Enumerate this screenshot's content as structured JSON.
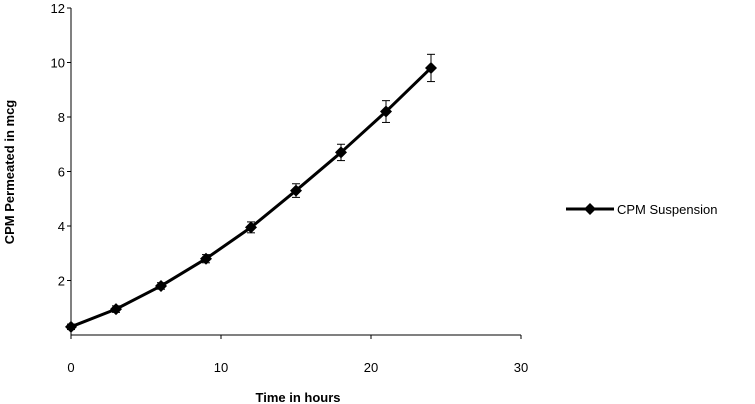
{
  "chart_data": {
    "type": "line",
    "xlabel": "Time in hours",
    "ylabel": "CPM Permeated in mcg",
    "xlim": [
      0,
      30
    ],
    "ylim": [
      0,
      12
    ],
    "xticks": [
      "0",
      "10",
      "20",
      "30"
    ],
    "yticks": [
      "2",
      "4",
      "6",
      "8",
      "10",
      "12"
    ],
    "grid": false,
    "legend_position": "right",
    "series": [
      {
        "name": "CPM Suspension",
        "color": "#000000",
        "marker": "diamond",
        "x": [
          0,
          3,
          6,
          9,
          12,
          15,
          18,
          21,
          24
        ],
        "y": [
          0.3,
          0.95,
          1.8,
          2.8,
          3.95,
          5.3,
          6.7,
          8.2,
          9.8
        ],
        "error": [
          0.1,
          0.12,
          0.12,
          0.15,
          0.2,
          0.25,
          0.3,
          0.4,
          0.5
        ]
      }
    ]
  }
}
